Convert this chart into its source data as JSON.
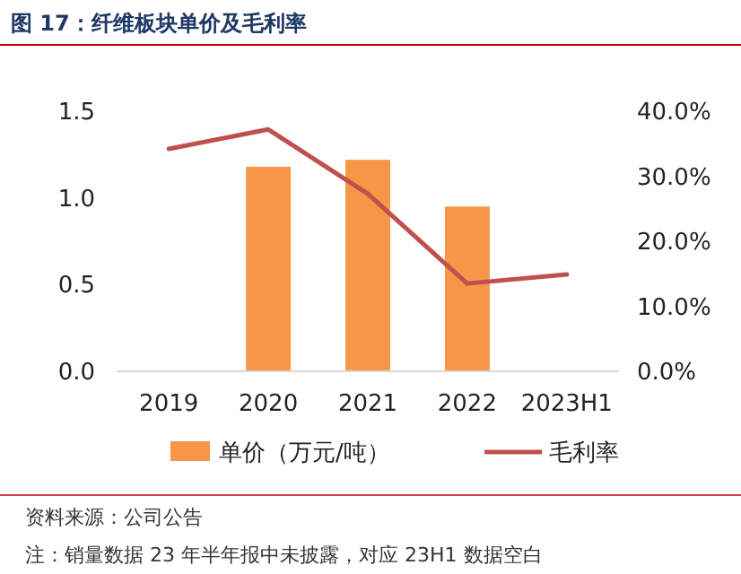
{
  "chart_data": {
    "type": "bar",
    "title": "图 17：纤维板块单价及毛利率",
    "categories": [
      "2019",
      "2020",
      "2021",
      "2022",
      "2023H1"
    ],
    "series": [
      {
        "name": "单价（万元/吨）",
        "color": "#f79646",
        "values": [
          null,
          1.18,
          1.22,
          0.95,
          null
        ]
      },
      {
        "name": "毛利率",
        "type": "line",
        "axis": "y2",
        "color": "#c0504d",
        "values": [
          34.2,
          37.2,
          27.3,
          13.5,
          14.9
        ]
      }
    ],
    "ylim": [
      0,
      1.5
    ],
    "yticks": [
      {
        "value": 0,
        "label": "0.0"
      },
      {
        "value": 0.5,
        "label": "0.5"
      },
      {
        "value": 1,
        "label": "1.0"
      },
      {
        "value": 1.5,
        "label": "1.5"
      }
    ],
    "y2lim": [
      0,
      40
    ],
    "y2ticks": [
      {
        "value": 0,
        "label": "0.0%"
      },
      {
        "value": 10,
        "label": "10.0%"
      },
      {
        "value": 20,
        "label": "20.0%"
      },
      {
        "value": 30,
        "label": "30.0%"
      },
      {
        "value": 40,
        "label": "40.0%"
      }
    ],
    "legend": "bottom",
    "grid": false,
    "annotations": [
      "资料来源：公司公告",
      "注：销量数据 23 年半年报中未披露，对应 23H1 数据空白"
    ]
  }
}
